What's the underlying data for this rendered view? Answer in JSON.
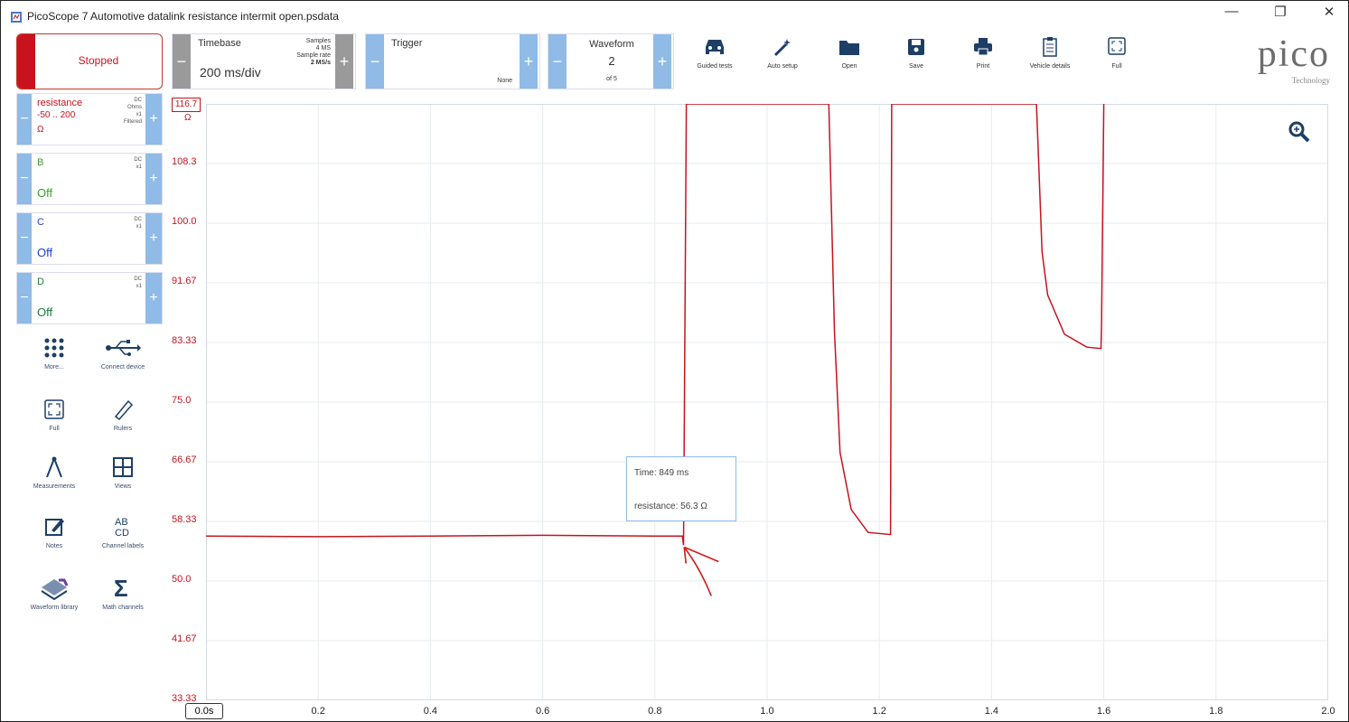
{
  "window": {
    "title": "PicoScope 7 Automotive datalink resistance intermit open.psdata",
    "minimize": "—",
    "restore": "❐",
    "close": "✕"
  },
  "run": {
    "label": "Stopped"
  },
  "timebase": {
    "label": "Timebase",
    "value": "200 ms/div",
    "samples_label": "Samples",
    "samples_value": "4 MS",
    "rate_label": "Sample rate",
    "rate_value": "2 MS/s"
  },
  "trigger": {
    "label": "Trigger",
    "mode": "None"
  },
  "waveform": {
    "label": "Waveform",
    "index": "2",
    "count": "of 5"
  },
  "plus": "+",
  "minus": "−",
  "toolbar": [
    {
      "label": "Guided tests",
      "icon": "car-icon"
    },
    {
      "label": "Auto setup",
      "icon": "wand-icon"
    },
    {
      "label": "Open",
      "icon": "folder-icon"
    },
    {
      "label": "Save",
      "icon": "save-icon"
    },
    {
      "label": "Print",
      "icon": "print-icon"
    },
    {
      "label": "Vehicle details",
      "icon": "clipboard-icon"
    },
    {
      "label": "Full",
      "icon": "fullscreen-icon"
    }
  ],
  "logo": {
    "name": "pico",
    "tagline": "Technology"
  },
  "channels": [
    {
      "name": "resistance",
      "range": "-50 .. 200",
      "unit": "Ω",
      "coupling": "DC",
      "units_label": "Ohms",
      "probe": "x1",
      "filter": "Filtered",
      "color": "#c8131e"
    },
    {
      "name": "B",
      "state": "Off",
      "coupling": "DC",
      "probe": "x1",
      "color": "#3a9e2a"
    },
    {
      "name": "C",
      "state": "Off",
      "coupling": "DC",
      "probe": "x1",
      "color": "#1f3fd0"
    },
    {
      "name": "D",
      "state": "Off",
      "coupling": "DC",
      "probe": "x1",
      "color": "#1b7a3a"
    }
  ],
  "left_tools": [
    {
      "label": "More...",
      "icon": "grid-dots-icon"
    },
    {
      "label": "Connect device",
      "icon": "usb-icon"
    },
    {
      "label": "Full",
      "icon": "fullscreen-icon"
    },
    {
      "label": "Rulers",
      "icon": "ruler-icon"
    },
    {
      "label": "Measurements",
      "icon": "compass-icon"
    },
    {
      "label": "Views",
      "icon": "views-icon"
    },
    {
      "label": "Notes",
      "icon": "notes-icon"
    },
    {
      "label": "Channel labels",
      "icon": "abcd-icon"
    },
    {
      "label": "Waveform library",
      "icon": "library-icon"
    },
    {
      "label": "Math channels",
      "icon": "sigma-icon"
    }
  ],
  "plot": {
    "y_max_badge": "116.7",
    "y_unit": "Ω",
    "x_start_badge": "0.0s",
    "tooltip_time": "Time: 849 ms",
    "tooltip_value": "resistance: 56.3 Ω"
  },
  "chart_data": {
    "type": "line",
    "title": "",
    "xlabel": "",
    "ylabel": "",
    "xlim": [
      0,
      2.0
    ],
    "ylim": [
      33.33,
      116.7
    ],
    "x_ticks": [
      "0.2",
      "0.4",
      "0.6",
      "0.8",
      "1.0",
      "1.2",
      "1.4",
      "1.6",
      "1.8",
      "2.0"
    ],
    "y_ticks": [
      "108.3",
      "100.0",
      "91.67",
      "83.33",
      "75.0",
      "66.67",
      "58.33",
      "50.0",
      "41.67",
      "33.33"
    ],
    "grid": true,
    "series": [
      {
        "color": "#c8131e",
        "x": [
          0,
          0.2,
          0.4,
          0.6,
          0.8,
          0.849,
          0.851,
          0.856,
          0.856,
          1.11,
          1.12,
          1.13,
          1.15,
          1.18,
          1.22,
          1.222,
          1.228,
          1.228,
          1.48,
          1.49,
          1.5,
          1.53,
          1.57,
          1.595,
          1.596,
          1.6
        ],
        "y": [
          56.3,
          56.2,
          56.3,
          56.4,
          56.3,
          56.3,
          55.0,
          116.7,
          116.7,
          116.7,
          85.0,
          68.0,
          60.0,
          56.8,
          56.5,
          116.7,
          116.7,
          116.7,
          116.7,
          96.0,
          90.0,
          84.5,
          82.7,
          82.5,
          85.5,
          116.7
        ]
      }
    ]
  }
}
